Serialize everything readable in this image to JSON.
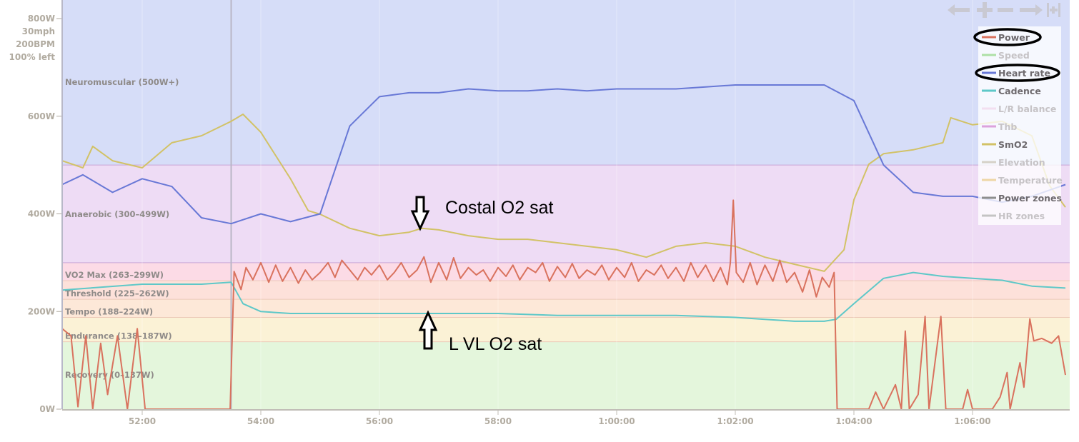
{
  "chart_data": {
    "type": "line",
    "title": "",
    "xlabel": "",
    "ylabel": "",
    "grid": true,
    "legend_position": "top-right",
    "xlim": [
      "50:39",
      "1:07:34"
    ],
    "ylim_power": [
      0,
      800
    ],
    "y_axis_top_labels": [
      "800W",
      "30mph",
      "200BPM",
      "100% left"
    ],
    "y_ticks": [
      "0W",
      "200W",
      "400W",
      "600W"
    ],
    "y_tick_values": [
      0,
      200,
      400,
      600
    ],
    "x_ticks": [
      "52:00",
      "54:00",
      "56:00",
      "58:00",
      "1:00:00",
      "1:02:00",
      "1:04:00",
      "1:06:00"
    ],
    "zones": [
      {
        "label": "Neuromuscular (500W+)",
        "min": 500,
        "max": 800,
        "color": "#d6ddf8"
      },
      {
        "label": "Anaerobic (300–499W)",
        "min": 300,
        "max": 500,
        "color": "#eedcf5"
      },
      {
        "label": "VO2 Max (263–299W)",
        "min": 263,
        "max": 300,
        "color": "#fcdbe6"
      },
      {
        "label": "Threshold (225–262W)",
        "min": 225,
        "max": 263,
        "color": "#fde1da"
      },
      {
        "label": "Tempo (188–224W)",
        "min": 188,
        "max": 225,
        "color": "#fde8d8"
      },
      {
        "label": "Endurance (138–187W)",
        "min": 138,
        "max": 188,
        "color": "#fbf2d6"
      },
      {
        "label": "Recovery (0–137W)",
        "min": 0,
        "max": 138,
        "color": "#e4f6dc"
      }
    ],
    "cursor_time": "53:30",
    "series": [
      {
        "name": "Power",
        "unit": "W",
        "color": "#d9725e",
        "points": [
          [
            "50:39",
            165
          ],
          [
            "50:48",
            150
          ],
          [
            "50:55",
            5
          ],
          [
            "51:03",
            150
          ],
          [
            "51:10",
            0
          ],
          [
            "51:18",
            135
          ],
          [
            "51:25",
            30
          ],
          [
            "51:35",
            150
          ],
          [
            "51:45",
            0
          ],
          [
            "51:55",
            165
          ],
          [
            "52:03",
            0
          ],
          [
            "52:15",
            0
          ],
          [
            "52:30",
            0
          ],
          [
            "53:00",
            0
          ],
          [
            "53:29",
            0
          ],
          [
            "53:33",
            282
          ],
          [
            "53:40",
            245
          ],
          [
            "53:45",
            290
          ],
          [
            "53:52",
            265
          ],
          [
            "54:00",
            300
          ],
          [
            "54:08",
            260
          ],
          [
            "54:15",
            295
          ],
          [
            "54:22",
            262
          ],
          [
            "54:30",
            290
          ],
          [
            "54:38",
            258
          ],
          [
            "54:45",
            285
          ],
          [
            "54:52",
            265
          ],
          [
            "55:00",
            280
          ],
          [
            "55:08",
            300
          ],
          [
            "55:15",
            270
          ],
          [
            "55:22",
            305
          ],
          [
            "55:30",
            285
          ],
          [
            "55:38",
            265
          ],
          [
            "55:45",
            290
          ],
          [
            "55:52",
            275
          ],
          [
            "56:00",
            295
          ],
          [
            "56:08",
            265
          ],
          [
            "56:15",
            280
          ],
          [
            "56:22",
            300
          ],
          [
            "56:30",
            270
          ],
          [
            "56:38",
            285
          ],
          [
            "56:45",
            312
          ],
          [
            "56:52",
            260
          ],
          [
            "57:00",
            300
          ],
          [
            "57:08",
            265
          ],
          [
            "57:15",
            310
          ],
          [
            "57:22",
            268
          ],
          [
            "57:30",
            290
          ],
          [
            "57:38",
            275
          ],
          [
            "57:45",
            285
          ],
          [
            "57:52",
            262
          ],
          [
            "58:00",
            290
          ],
          [
            "58:08",
            272
          ],
          [
            "58:15",
            295
          ],
          [
            "58:22",
            265
          ],
          [
            "58:30",
            290
          ],
          [
            "58:38",
            280
          ],
          [
            "58:45",
            300
          ],
          [
            "58:52",
            262
          ],
          [
            "59:00",
            292
          ],
          [
            "59:08",
            270
          ],
          [
            "59:15",
            298
          ],
          [
            "59:22",
            268
          ],
          [
            "59:30",
            285
          ],
          [
            "59:38",
            275
          ],
          [
            "59:45",
            295
          ],
          [
            "59:52",
            265
          ],
          [
            "1:00:00",
            290
          ],
          [
            "1:00:08",
            270
          ],
          [
            "1:00:15",
            300
          ],
          [
            "1:00:22",
            262
          ],
          [
            "1:00:30",
            285
          ],
          [
            "1:00:38",
            275
          ],
          [
            "1:00:45",
            295
          ],
          [
            "1:00:52",
            268
          ],
          [
            "1:01:00",
            290
          ],
          [
            "1:01:08",
            262
          ],
          [
            "1:01:15",
            300
          ],
          [
            "1:01:22",
            270
          ],
          [
            "1:01:30",
            295
          ],
          [
            "1:01:38",
            262
          ],
          [
            "1:01:45",
            290
          ],
          [
            "1:01:52",
            255
          ],
          [
            "1:01:55",
            300
          ],
          [
            "1:01:58",
            428
          ],
          [
            "1:02:01",
            280
          ],
          [
            "1:02:08",
            260
          ],
          [
            "1:02:15",
            300
          ],
          [
            "1:02:22",
            255
          ],
          [
            "1:02:30",
            295
          ],
          [
            "1:02:38",
            262
          ],
          [
            "1:02:45",
            305
          ],
          [
            "1:02:52",
            260
          ],
          [
            "1:03:00",
            280
          ],
          [
            "1:03:08",
            240
          ],
          [
            "1:03:15",
            285
          ],
          [
            "1:03:22",
            230
          ],
          [
            "1:03:28",
            270
          ],
          [
            "1:03:35",
            250
          ],
          [
            "1:03:40",
            280
          ],
          [
            "1:03:43",
            0
          ],
          [
            "1:04:00",
            0
          ],
          [
            "1:04:15",
            0
          ],
          [
            "1:04:22",
            35
          ],
          [
            "1:04:30",
            0
          ],
          [
            "1:04:42",
            50
          ],
          [
            "1:04:48",
            0
          ],
          [
            "1:04:52",
            160
          ],
          [
            "1:04:56",
            0
          ],
          [
            "1:05:05",
            30
          ],
          [
            "1:05:12",
            190
          ],
          [
            "1:05:16",
            0
          ],
          [
            "1:05:28",
            190
          ],
          [
            "1:05:33",
            0
          ],
          [
            "1:05:50",
            0
          ],
          [
            "1:05:55",
            40
          ],
          [
            "1:06:00",
            0
          ],
          [
            "1:06:20",
            0
          ],
          [
            "1:06:28",
            25
          ],
          [
            "1:06:35",
            75
          ],
          [
            "1:06:38",
            0
          ],
          [
            "1:06:48",
            95
          ],
          [
            "1:06:52",
            45
          ],
          [
            "1:06:58",
            185
          ],
          [
            "1:07:02",
            140
          ],
          [
            "1:07:10",
            145
          ],
          [
            "1:07:20",
            135
          ],
          [
            "1:07:27",
            150
          ],
          [
            "1:07:34",
            70
          ]
        ]
      },
      {
        "name": "Speed",
        "color": "#aee0a6",
        "hidden": true
      },
      {
        "name": "Heart rate",
        "unit": "bpm",
        "color": "#6878d6",
        "points": [
          [
            "50:39",
            115
          ],
          [
            "51:00",
            120
          ],
          [
            "51:30",
            111
          ],
          [
            "52:00",
            118
          ],
          [
            "52:30",
            114
          ],
          [
            "53:00",
            98
          ],
          [
            "53:30",
            95
          ],
          [
            "54:00",
            100
          ],
          [
            "54:30",
            96
          ],
          [
            "55:00",
            100
          ],
          [
            "55:30",
            145
          ],
          [
            "56:00",
            160
          ],
          [
            "56:30",
            162
          ],
          [
            "57:00",
            162
          ],
          [
            "57:30",
            164
          ],
          [
            "58:00",
            163
          ],
          [
            "58:30",
            163
          ],
          [
            "59:00",
            164
          ],
          [
            "59:30",
            163
          ],
          [
            "1:00:00",
            164
          ],
          [
            "1:00:30",
            164
          ],
          [
            "1:01:00",
            164
          ],
          [
            "1:01:30",
            165
          ],
          [
            "1:02:00",
            166
          ],
          [
            "1:02:30",
            166
          ],
          [
            "1:03:00",
            166
          ],
          [
            "1:03:30",
            166
          ],
          [
            "1:04:00",
            158
          ],
          [
            "1:04:30",
            125
          ],
          [
            "1:05:00",
            111
          ],
          [
            "1:05:30",
            109
          ],
          [
            "1:06:00",
            109
          ],
          [
            "1:06:30",
            106
          ],
          [
            "1:07:00",
            109
          ],
          [
            "1:07:34",
            115
          ]
        ]
      },
      {
        "name": "Cadence",
        "unit": "rpm",
        "color": "#5ec8c8",
        "points": [
          [
            "50:39",
            61
          ],
          [
            "52:00",
            64
          ],
          [
            "52:30",
            64
          ],
          [
            "53:00",
            64
          ],
          [
            "53:30",
            65
          ],
          [
            "53:42",
            54
          ],
          [
            "54:00",
            50
          ],
          [
            "54:30",
            49
          ],
          [
            "55:00",
            49
          ],
          [
            "55:30",
            49
          ],
          [
            "56:00",
            49
          ],
          [
            "57:00",
            49
          ],
          [
            "58:00",
            49
          ],
          [
            "59:00",
            48
          ],
          [
            "1:00:00",
            48
          ],
          [
            "1:01:00",
            48
          ],
          [
            "1:02:00",
            47
          ],
          [
            "1:02:30",
            46
          ],
          [
            "1:03:00",
            45
          ],
          [
            "1:03:30",
            45
          ],
          [
            "1:03:42",
            46
          ],
          [
            "1:04:00",
            54
          ],
          [
            "1:04:30",
            67
          ],
          [
            "1:05:00",
            70
          ],
          [
            "1:05:30",
            68
          ],
          [
            "1:06:00",
            67
          ],
          [
            "1:06:30",
            66
          ],
          [
            "1:07:00",
            63
          ],
          [
            "1:07:34",
            62
          ]
        ]
      },
      {
        "name": "L/R balance",
        "color": "#f3dff0",
        "hidden": true
      },
      {
        "name": "Thb",
        "color": "#dca2dc",
        "hidden": true
      },
      {
        "name": "SmO2",
        "unit": "%",
        "color": "#d2c266",
        "points": [
          [
            "50:39",
            63.6
          ],
          [
            "51:00",
            61.8
          ],
          [
            "51:10",
            67.3
          ],
          [
            "51:30",
            63.6
          ],
          [
            "52:00",
            61.8
          ],
          [
            "52:30",
            68.2
          ],
          [
            "53:00",
            70.0
          ],
          [
            "53:30",
            73.7
          ],
          [
            "53:42",
            75.5
          ],
          [
            "54:00",
            70.9
          ],
          [
            "54:30",
            59.0
          ],
          [
            "54:48",
            50.8
          ],
          [
            "55:00",
            49.9
          ],
          [
            "55:30",
            46.3
          ],
          [
            "56:00",
            44.4
          ],
          [
            "56:30",
            45.3
          ],
          [
            "56:43",
            46.3
          ],
          [
            "57:00",
            45.9
          ],
          [
            "57:30",
            44.4
          ],
          [
            "58:00",
            43.5
          ],
          [
            "58:30",
            43.5
          ],
          [
            "59:00",
            42.6
          ],
          [
            "59:30",
            41.7
          ],
          [
            "1:00:00",
            40.8
          ],
          [
            "1:00:30",
            38.9
          ],
          [
            "1:01:00",
            41.7
          ],
          [
            "1:01:30",
            42.6
          ],
          [
            "1:02:00",
            41.7
          ],
          [
            "1:02:30",
            38.9
          ],
          [
            "1:03:00",
            37.1
          ],
          [
            "1:03:30",
            35.3
          ],
          [
            "1:03:50",
            40.8
          ],
          [
            "1:04:00",
            53.6
          ],
          [
            "1:04:15",
            62.7
          ],
          [
            "1:04:30",
            65.4
          ],
          [
            "1:05:00",
            66.4
          ],
          [
            "1:05:30",
            68.2
          ],
          [
            "1:05:38",
            74.6
          ],
          [
            "1:06:00",
            72.8
          ],
          [
            "1:06:30",
            73.7
          ],
          [
            "1:07:00",
            70.0
          ],
          [
            "1:07:18",
            57.2
          ],
          [
            "1:07:34",
            51.7
          ]
        ]
      },
      {
        "name": "Elevation",
        "color": "#d6d2c8",
        "hidden": true
      },
      {
        "name": "Temperature",
        "color": "#eed6a6",
        "hidden": true
      },
      {
        "name": "Power zones",
        "color": "#8e8e8e",
        "hidden": false
      },
      {
        "name": "HR zones",
        "color": "#c4c4c4",
        "hidden": true
      }
    ],
    "annotations": [
      {
        "text": "Costal O2 sat",
        "arrow": "down"
      },
      {
        "text": "L VL O2 sat",
        "arrow": "up"
      }
    ],
    "circled_legend_items": [
      "Power",
      "Heart rate"
    ]
  },
  "toolbar": {
    "icons": [
      "arrow-left-icon",
      "zoom-in-icon",
      "zoom-out-icon",
      "arrow-right-icon",
      "reset-zoom-icon"
    ]
  }
}
